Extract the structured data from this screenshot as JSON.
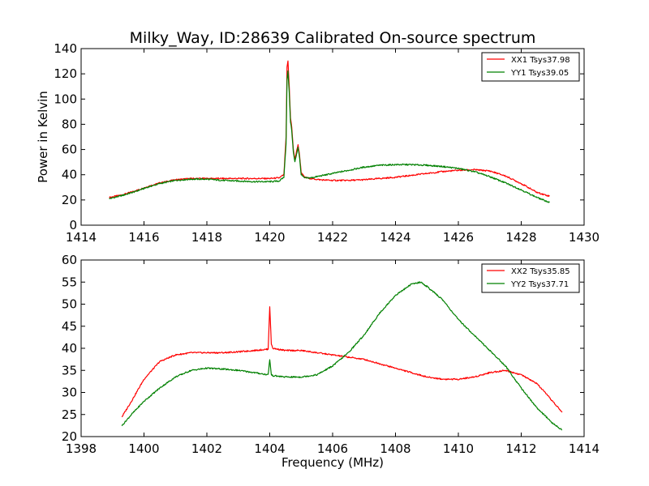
{
  "chart_data": [
    {
      "type": "line",
      "title": "Milky_Way, ID:28639 Calibrated On-source spectrum",
      "xlabel": "",
      "ylabel": "Power in Kelvin",
      "xlim": [
        1414,
        1430
      ],
      "ylim": [
        0,
        140
      ],
      "xticks": [
        1414,
        1416,
        1418,
        1420,
        1422,
        1424,
        1426,
        1428,
        1430
      ],
      "yticks": [
        0,
        20,
        40,
        60,
        80,
        100,
        120,
        140
      ],
      "legend_position": "top-right",
      "series": [
        {
          "name": "XX1 Tsys37.98",
          "color": "#ff0000",
          "x": [
            1414.9,
            1415.3,
            1415.7,
            1416.1,
            1416.5,
            1417.0,
            1417.5,
            1418.0,
            1418.5,
            1419.0,
            1419.5,
            1420.0,
            1420.3,
            1420.45,
            1420.52,
            1420.55,
            1420.58,
            1420.62,
            1420.66,
            1420.7,
            1420.75,
            1420.8,
            1420.85,
            1420.9,
            1420.95,
            1421.0,
            1421.1,
            1421.3,
            1421.6,
            1422.0,
            1422.5,
            1423.0,
            1423.5,
            1424.0,
            1424.5,
            1425.0,
            1425.5,
            1426.0,
            1426.5,
            1427.0,
            1427.5,
            1428.0,
            1428.5,
            1428.9
          ],
          "values": [
            22,
            24,
            27,
            30.5,
            33.5,
            36,
            37,
            37,
            37,
            37,
            37,
            37,
            37.5,
            40,
            70,
            125,
            130,
            110,
            85,
            78,
            60,
            52,
            58,
            64,
            55,
            42,
            38,
            37,
            36,
            35.5,
            35.5,
            36,
            37,
            38,
            39.5,
            41,
            42.5,
            43.5,
            44,
            43,
            39,
            33,
            26,
            23
          ]
        },
        {
          "name": "YY1 Tsys39.05",
          "color": "#008000",
          "x": [
            1414.9,
            1415.3,
            1415.7,
            1416.1,
            1416.5,
            1417.0,
            1417.5,
            1418.0,
            1418.5,
            1419.0,
            1419.5,
            1420.0,
            1420.3,
            1420.45,
            1420.52,
            1420.55,
            1420.58,
            1420.62,
            1420.66,
            1420.7,
            1420.75,
            1420.8,
            1420.85,
            1420.9,
            1420.95,
            1421.0,
            1421.1,
            1421.3,
            1421.6,
            1422.0,
            1422.5,
            1423.0,
            1423.5,
            1424.0,
            1424.5,
            1425.0,
            1425.5,
            1426.0,
            1426.5,
            1427.0,
            1427.5,
            1428.0,
            1428.5,
            1428.9
          ],
          "values": [
            21,
            23.5,
            26.5,
            30,
            33,
            35.5,
            36.5,
            36.5,
            35.5,
            35,
            34.5,
            34.5,
            35,
            38,
            65,
            115,
            122,
            105,
            82,
            75,
            58,
            50,
            56,
            62,
            53,
            40,
            37.5,
            37.5,
            39,
            41,
            43.5,
            46,
            47.5,
            48,
            48,
            47.5,
            46.5,
            45,
            42.5,
            38.5,
            33.5,
            28,
            22,
            18
          ]
        }
      ]
    },
    {
      "type": "line",
      "title": "",
      "xlabel": "Frequency (MHz)",
      "ylabel": "",
      "xlim": [
        1398,
        1414
      ],
      "ylim": [
        20,
        60
      ],
      "xticks": [
        1398,
        1400,
        1402,
        1404,
        1406,
        1408,
        1410,
        1412,
        1414
      ],
      "yticks": [
        20,
        25,
        30,
        35,
        40,
        45,
        50,
        55,
        60
      ],
      "legend_position": "top-right",
      "series": [
        {
          "name": "XX2 Tsys35.85",
          "color": "#ff0000",
          "x": [
            1399.3,
            1399.6,
            1400.0,
            1400.5,
            1401.0,
            1401.5,
            1402.0,
            1402.5,
            1403.0,
            1403.5,
            1403.95,
            1404.0,
            1404.05,
            1404.1,
            1404.5,
            1405.0,
            1405.5,
            1406.0,
            1406.5,
            1407.0,
            1407.5,
            1408.0,
            1408.5,
            1409.0,
            1409.5,
            1410.0,
            1410.5,
            1411.0,
            1411.5,
            1412.0,
            1412.5,
            1413.0,
            1413.3
          ],
          "values": [
            24.5,
            28,
            33,
            37,
            38.5,
            39,
            39,
            39,
            39.2,
            39.5,
            39.8,
            49.5,
            41,
            40,
            39.5,
            39.5,
            39,
            38.5,
            38,
            37.5,
            36.5,
            35.5,
            34.5,
            33.5,
            33,
            33,
            33.5,
            34.5,
            35,
            34,
            32,
            28,
            25.5
          ]
        },
        {
          "name": "YY2 Tsys37.71",
          "color": "#008000",
          "x": [
            1399.3,
            1399.6,
            1400.0,
            1400.5,
            1401.0,
            1401.5,
            1402.0,
            1402.5,
            1403.0,
            1403.5,
            1403.95,
            1404.0,
            1404.05,
            1404.1,
            1404.5,
            1405.0,
            1405.5,
            1406.0,
            1406.5,
            1407.0,
            1407.5,
            1408.0,
            1408.5,
            1408.8,
            1409.0,
            1409.5,
            1410.0,
            1410.5,
            1411.0,
            1411.5,
            1412.0,
            1412.5,
            1413.0,
            1413.3
          ],
          "values": [
            22.5,
            25,
            28,
            31,
            33.5,
            35,
            35.5,
            35.3,
            35,
            34.5,
            34,
            37.5,
            34,
            33.8,
            33.5,
            33.5,
            34,
            36,
            39,
            43,
            48,
            52,
            54.5,
            55,
            54,
            51,
            46.5,
            43,
            39.5,
            36,
            31,
            26.5,
            23,
            21.5
          ]
        }
      ]
    }
  ]
}
